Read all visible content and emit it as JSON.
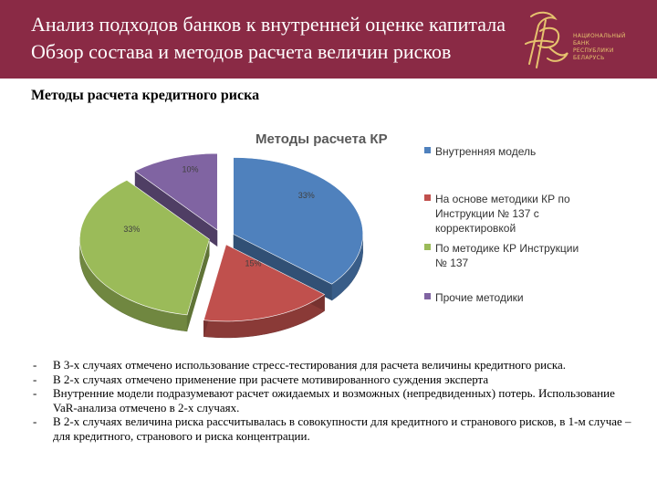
{
  "header": {
    "title_line1": "Анализ подходов банков к внутренней оценке капитала",
    "title_line2": "Обзор состава и методов расчета величин рисков",
    "logo_lines": [
      "НАЦИОНАЛЬНЫЙ",
      "БАНК",
      "РЕСПУБЛИКИ",
      "БЕЛАРУСЬ"
    ],
    "colors": {
      "background": "#8a2a45",
      "logo_gold": "#e6c26e"
    }
  },
  "subtitle": "Методы расчета кредитного риска",
  "chart_data": {
    "type": "pie",
    "title": "Методы расчета КР",
    "categories": [
      "Внутренняя модель",
      "На основе методики КР по Инструкции № 137 с корректировкой",
      "По методике КР Инструкции № 137",
      "Прочие методики"
    ],
    "values": [
      33,
      15,
      33,
      10
    ],
    "data_labels": [
      "33%",
      "15%",
      "33%",
      "10%"
    ],
    "colors": [
      "#4f81bd",
      "#c0504d",
      "#9bbb59",
      "#8064a2"
    ],
    "style": "3d-exploded",
    "legend_position": "right"
  },
  "bullets": [
    {
      "dash": "-",
      "text": "В 3-х случаях отмечено использование стресс-тестирования для расчета величины кредитного риска."
    },
    {
      "dash": "-",
      "text": "В 2-х случаях отмечено применение при расчете мотивированного суждения эксперта"
    },
    {
      "dash": "-",
      "text": "Внутренние модели подразумевают расчет ожидаемых и возможных (непредвиденных) потерь. Использование VaR-анализа отмечено в 2-х случаях."
    },
    {
      "dash": "-",
      "text": "В 2-х случаях величина риска рассчитывалась в совокупности для кредитного и странового рисков, в 1-м случае – для кредитного, странового и риска концентрации."
    }
  ]
}
